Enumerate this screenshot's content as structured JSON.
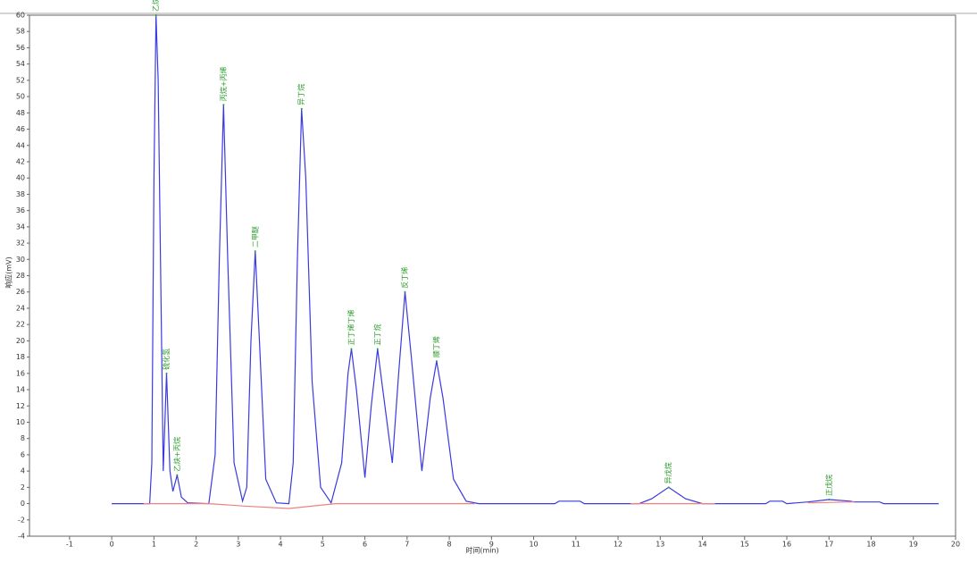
{
  "chart_data": {
    "type": "line",
    "x_label": "时间(min)",
    "y_label": "响应(mV)",
    "xlim": [
      -1.95,
      20
    ],
    "ylim": [
      -4,
      60
    ],
    "xticks": [
      -1,
      0,
      1,
      2,
      3,
      4,
      5,
      6,
      7,
      8,
      9,
      10,
      11,
      12,
      13,
      14,
      15,
      16,
      17,
      18,
      19,
      20
    ],
    "yticks": [
      -4,
      -2,
      0,
      2,
      4,
      6,
      8,
      10,
      12,
      14,
      16,
      18,
      20,
      22,
      24,
      26,
      28,
      30,
      32,
      34,
      36,
      38,
      40,
      42,
      44,
      46,
      48,
      50,
      52,
      54,
      56,
      58,
      60
    ],
    "series": [
      {
        "color": "#3a3ae0",
        "x": [
          0,
          0.9,
          0.95,
          1.0,
          1.05,
          1.1,
          1.18,
          1.22,
          1.3,
          1.38,
          1.45,
          1.55,
          1.65,
          1.8,
          2.3,
          2.45,
          2.55,
          2.65,
          2.75,
          2.9,
          3.1,
          3.2,
          3.3,
          3.4,
          3.5,
          3.65,
          3.9,
          4.2,
          4.3,
          4.4,
          4.5,
          4.6,
          4.75,
          4.95,
          5.2,
          5.45,
          5.6,
          5.68,
          5.8,
          6.0,
          6.15,
          6.3,
          6.45,
          6.65,
          6.8,
          6.95,
          7.1,
          7.35,
          7.55,
          7.7,
          7.85,
          8.1,
          8.4,
          8.7,
          10.5,
          10.6,
          11.1,
          11.2,
          12.5,
          12.8,
          13.2,
          13.6,
          14.0,
          15.5,
          15.6,
          15.9,
          16.0,
          16.5,
          17.0,
          17.5,
          17.6,
          18.2,
          18.3,
          19.6
        ],
        "values": [
          0,
          0,
          5,
          40,
          60,
          52,
          20,
          4,
          16,
          4,
          1.5,
          3.5,
          0.8,
          0.1,
          0,
          6,
          30,
          49,
          30,
          5,
          0.3,
          2,
          20,
          31,
          20,
          3,
          0.1,
          0,
          5,
          30,
          48.5,
          40,
          15,
          2,
          0.1,
          5,
          16,
          19,
          14,
          3.2,
          12,
          19,
          13,
          5,
          16,
          26,
          18,
          4,
          13,
          17.5,
          13,
          3,
          0.3,
          0,
          0,
          0.3,
          0.3,
          0,
          0,
          0.6,
          2,
          0.6,
          0,
          0,
          0.3,
          0.3,
          0,
          0.2,
          0.5,
          0.3,
          0.2,
          0.2,
          0,
          0
        ]
      },
      {
        "color": "#f08080",
        "x": [
          0.75,
          2.3,
          3.15,
          4.2,
          5.3,
          8.6,
          9.0,
          12.3,
          14.3,
          15.0,
          16.5,
          17.6
        ],
        "values": [
          0,
          0,
          -0.3,
          -0.6,
          0,
          0,
          null,
          0,
          0,
          null,
          0.1,
          0.2
        ]
      }
    ],
    "peaks": [
      {
        "label": "乙烷+乙烯",
        "x": 1.05,
        "y": 60
      },
      {
        "label": "硫化氢",
        "x": 1.3,
        "y": 16
      },
      {
        "label": "乙炔+丙烷",
        "x": 1.55,
        "y": 3.5
      },
      {
        "label": "丙烷+丙烯",
        "x": 2.65,
        "y": 49
      },
      {
        "label": "二甲醚",
        "x": 3.4,
        "y": 31
      },
      {
        "label": "异丁烷",
        "x": 4.5,
        "y": 48.5
      },
      {
        "label": "正丁烯丁烯",
        "x": 5.68,
        "y": 19
      },
      {
        "label": "正丁烷",
        "x": 6.3,
        "y": 19
      },
      {
        "label": "反丁烯",
        "x": 6.95,
        "y": 26
      },
      {
        "label": "顺丁烯",
        "x": 7.7,
        "y": 17.5
      },
      {
        "label": "异戊烷",
        "x": 13.2,
        "y": 2
      },
      {
        "label": "正戊烷",
        "x": 17.0,
        "y": 0.5
      }
    ]
  }
}
